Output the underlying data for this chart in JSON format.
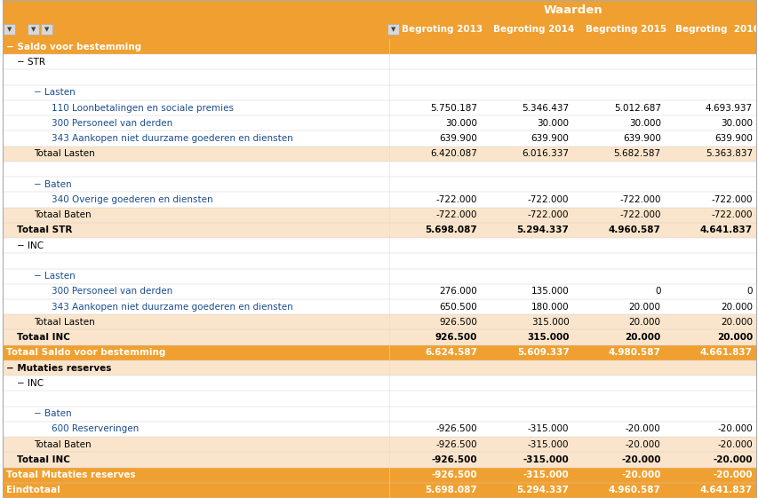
{
  "title": "Waarden",
  "col_headers": [
    "Begroting 2013",
    "Begroting 2014",
    "Begroting 2015",
    "Begroting  2016"
  ],
  "orange": "#F0A030",
  "light_orange": "#FAE5CC",
  "white": "#FFFFFF",
  "text_black": "#000000",
  "text_white": "#FFFFFF",
  "text_blue": "#1A4D8F",
  "text_dark_orange": "#7B3F00",
  "rows": [
    {
      "label": "− Saldo voor bestemming",
      "indent": 0,
      "values": [
        "",
        "",
        "",
        ""
      ],
      "style": "orange_header",
      "bold": true,
      "label_color": "white",
      "val_color": "white"
    },
    {
      "label": "− STR",
      "indent": 1,
      "values": [
        "",
        "",
        "",
        ""
      ],
      "style": "white",
      "bold": false,
      "label_color": "black",
      "val_color": "black"
    },
    {
      "label": "",
      "indent": 0,
      "values": [
        "",
        "",
        "",
        ""
      ],
      "style": "white",
      "bold": false,
      "label_color": "black",
      "val_color": "black"
    },
    {
      "label": "− Lasten",
      "indent": 2,
      "values": [
        "",
        "",
        "",
        ""
      ],
      "style": "white",
      "bold": false,
      "label_color": "blue_dark",
      "val_color": "black"
    },
    {
      "label": "110 Loonbetalingen en sociale premies",
      "indent": 3,
      "values": [
        "5.750.187",
        "5.346.437",
        "5.012.687",
        "4.693.937"
      ],
      "style": "white",
      "bold": false,
      "label_color": "blue_dark",
      "val_color": "black"
    },
    {
      "label": "300 Personeel van derden",
      "indent": 3,
      "values": [
        "30.000",
        "30.000",
        "30.000",
        "30.000"
      ],
      "style": "white",
      "bold": false,
      "label_color": "blue_dark",
      "val_color": "black"
    },
    {
      "label": "343 Aankopen niet duurzame goederen en diensten",
      "indent": 3,
      "values": [
        "639.900",
        "639.900",
        "639.900",
        "639.900"
      ],
      "style": "white",
      "bold": false,
      "label_color": "blue_dark",
      "val_color": "black"
    },
    {
      "label": "Totaal Lasten",
      "indent": 2,
      "values": [
        "6.420.087",
        "6.016.337",
        "5.682.587",
        "5.363.837"
      ],
      "style": "light",
      "bold": false,
      "label_color": "black",
      "val_color": "black"
    },
    {
      "label": "",
      "indent": 0,
      "values": [
        "",
        "",
        "",
        ""
      ],
      "style": "white",
      "bold": false,
      "label_color": "black",
      "val_color": "black"
    },
    {
      "label": "− Baten",
      "indent": 2,
      "values": [
        "",
        "",
        "",
        ""
      ],
      "style": "white",
      "bold": false,
      "label_color": "blue_dark",
      "val_color": "black"
    },
    {
      "label": "340 Overige goederen en diensten",
      "indent": 3,
      "values": [
        "-722.000",
        "-722.000",
        "-722.000",
        "-722.000"
      ],
      "style": "white",
      "bold": false,
      "label_color": "blue_dark",
      "val_color": "black"
    },
    {
      "label": "Totaal Baten",
      "indent": 2,
      "values": [
        "-722.000",
        "-722.000",
        "-722.000",
        "-722.000"
      ],
      "style": "light",
      "bold": false,
      "label_color": "black",
      "val_color": "black"
    },
    {
      "label": "Totaal STR",
      "indent": 1,
      "values": [
        "5.698.087",
        "5.294.337",
        "4.960.587",
        "4.641.837"
      ],
      "style": "light",
      "bold": true,
      "label_color": "black",
      "val_color": "black"
    },
    {
      "label": "− INC",
      "indent": 1,
      "values": [
        "",
        "",
        "",
        ""
      ],
      "style": "white",
      "bold": false,
      "label_color": "black",
      "val_color": "black"
    },
    {
      "label": "",
      "indent": 0,
      "values": [
        "",
        "",
        "",
        ""
      ],
      "style": "white",
      "bold": false,
      "label_color": "black",
      "val_color": "black"
    },
    {
      "label": "− Lasten",
      "indent": 2,
      "values": [
        "",
        "",
        "",
        ""
      ],
      "style": "white",
      "bold": false,
      "label_color": "blue_dark",
      "val_color": "black"
    },
    {
      "label": "300 Personeel van derden",
      "indent": 3,
      "values": [
        "276.000",
        "135.000",
        "0",
        "0"
      ],
      "style": "white",
      "bold": false,
      "label_color": "blue_dark",
      "val_color": "black"
    },
    {
      "label": "343 Aankopen niet duurzame goederen en diensten",
      "indent": 3,
      "values": [
        "650.500",
        "180.000",
        "20.000",
        "20.000"
      ],
      "style": "white",
      "bold": false,
      "label_color": "blue_dark",
      "val_color": "black"
    },
    {
      "label": "Totaal Lasten",
      "indent": 2,
      "values": [
        "926.500",
        "315.000",
        "20.000",
        "20.000"
      ],
      "style": "light",
      "bold": false,
      "label_color": "black",
      "val_color": "black"
    },
    {
      "label": "Totaal INC",
      "indent": 1,
      "values": [
        "926.500",
        "315.000",
        "20.000",
        "20.000"
      ],
      "style": "light",
      "bold": true,
      "label_color": "black",
      "val_color": "black"
    },
    {
      "label": "Totaal Saldo voor bestemming",
      "indent": 0,
      "values": [
        "6.624.587",
        "5.609.337",
        "4.980.587",
        "4.661.837"
      ],
      "style": "orange_row",
      "bold": true,
      "label_color": "white",
      "val_color": "white"
    },
    {
      "label": "− Mutaties reserves",
      "indent": 0,
      "values": [
        "",
        "",
        "",
        ""
      ],
      "style": "light_header",
      "bold": true,
      "label_color": "black",
      "val_color": "black"
    },
    {
      "label": "− INC",
      "indent": 1,
      "values": [
        "",
        "",
        "",
        ""
      ],
      "style": "white",
      "bold": false,
      "label_color": "black",
      "val_color": "black"
    },
    {
      "label": "",
      "indent": 0,
      "values": [
        "",
        "",
        "",
        ""
      ],
      "style": "white",
      "bold": false,
      "label_color": "black",
      "val_color": "black"
    },
    {
      "label": "− Baten",
      "indent": 2,
      "values": [
        "",
        "",
        "",
        ""
      ],
      "style": "white",
      "bold": false,
      "label_color": "blue_dark",
      "val_color": "black"
    },
    {
      "label": "600 Reserveringen",
      "indent": 3,
      "values": [
        "-926.500",
        "-315.000",
        "-20.000",
        "-20.000"
      ],
      "style": "white",
      "bold": false,
      "label_color": "blue_dark",
      "val_color": "black"
    },
    {
      "label": "Totaal Baten",
      "indent": 2,
      "values": [
        "-926.500",
        "-315.000",
        "-20.000",
        "-20.000"
      ],
      "style": "light",
      "bold": false,
      "label_color": "black",
      "val_color": "black"
    },
    {
      "label": "Totaal INC",
      "indent": 1,
      "values": [
        "-926.500",
        "-315.000",
        "-20.000",
        "-20.000"
      ],
      "style": "light",
      "bold": true,
      "label_color": "black",
      "val_color": "black"
    },
    {
      "label": "Totaal Mutaties reserves",
      "indent": 0,
      "values": [
        "-926.500",
        "-315.000",
        "-20.000",
        "-20.000"
      ],
      "style": "orange_row",
      "bold": true,
      "label_color": "white",
      "val_color": "white"
    },
    {
      "label": "Eindtotaal",
      "indent": 0,
      "values": [
        "5.698.087",
        "5.294.337",
        "4.960.587",
        "4.641.837"
      ],
      "style": "orange_row",
      "bold": true,
      "label_color": "white",
      "val_color": "white"
    }
  ]
}
